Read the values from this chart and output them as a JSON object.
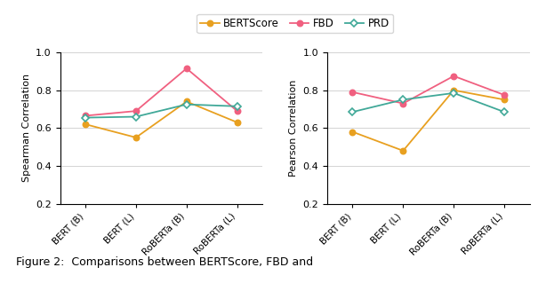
{
  "categories": [
    "BERT (B)",
    "BERT (L)",
    "RoBERTa (B)",
    "RoBERTa (L)"
  ],
  "spearman": {
    "BERTScore": [
      0.62,
      0.55,
      0.74,
      0.63
    ],
    "FBD": [
      0.665,
      0.69,
      0.915,
      0.69
    ],
    "PRD": [
      0.655,
      0.66,
      0.725,
      0.715
    ]
  },
  "pearson": {
    "BERTScore": [
      0.58,
      0.48,
      0.8,
      0.75
    ],
    "FBD": [
      0.79,
      0.73,
      0.875,
      0.775
    ],
    "PRD": [
      0.685,
      0.75,
      0.785,
      0.685
    ]
  },
  "colors": {
    "BERTScore": "#e8a020",
    "FBD": "#f06080",
    "PRD": "#40a898"
  },
  "markers": {
    "BERTScore": "o",
    "FBD": "o",
    "PRD": "D"
  },
  "ylim": [
    0.2,
    1.0
  ],
  "yticks": [
    0.2,
    0.4,
    0.6,
    0.8,
    1.0
  ],
  "ylabel_left": "Spearman Correlation",
  "ylabel_right": "Pearson Correlation",
  "caption": "Figure 2:  Comparisons between BERTScore, FBD and",
  "figsize": [
    6.14,
    3.28
  ],
  "dpi": 100
}
